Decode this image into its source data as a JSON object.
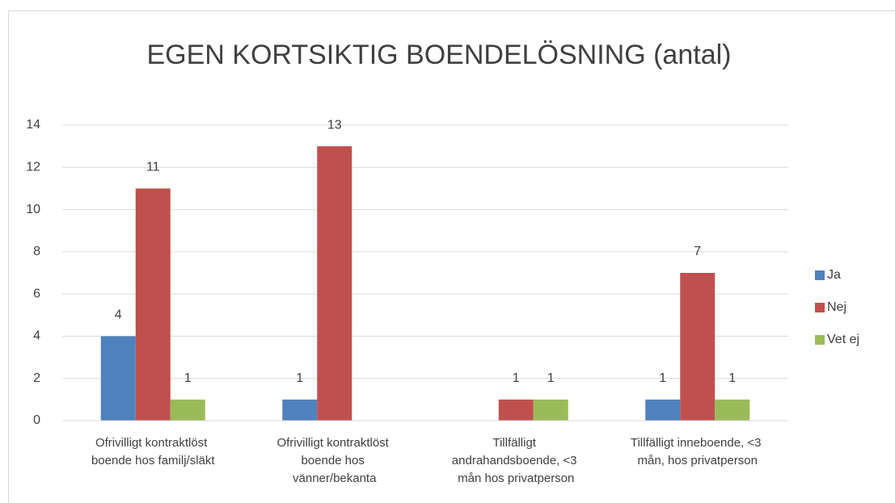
{
  "chart_data": {
    "type": "bar",
    "title": "EGEN KORTSIKTIG BOENDELÖSNING (antal)",
    "categories": [
      "Ofrivilligt kontraktlöst boende hos familj/släkt",
      "Ofrivilligt kontraktlöst boende hos vänner/bekanta",
      "Tillfälligt andrahandsboende, <3 mån hos privatperson",
      "Tillfälligt inneboende, <3 mån, hos privatperson"
    ],
    "series": [
      {
        "name": "Ja",
        "color": "#4f81bd",
        "values": [
          4,
          1,
          null,
          1
        ]
      },
      {
        "name": "Nej",
        "color": "#c0504d",
        "values": [
          11,
          13,
          1,
          7
        ]
      },
      {
        "name": "Vet ej",
        "color": "#9bbb59",
        "values": [
          1,
          null,
          1,
          1
        ]
      }
    ],
    "ylim": [
      0,
      14
    ],
    "yticks": [
      0,
      2,
      4,
      6,
      8,
      10,
      12,
      14
    ],
    "grid": true,
    "legend": "right"
  }
}
